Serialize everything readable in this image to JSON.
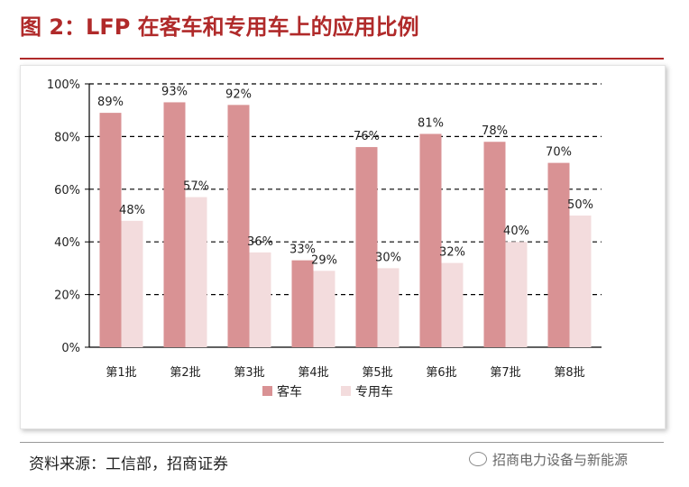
{
  "title": "图 2：LFP 在客车和专用车上的应用比例",
  "source": "资料来源：工信部，招商证券",
  "watermark": "招商电力设备与新能源",
  "colors": {
    "bus": "#d99294",
    "special": "#f3dcdd",
    "accent": "#b02a2a"
  },
  "chart_data": {
    "type": "bar",
    "categories": [
      "第1批",
      "第2批",
      "第3批",
      "第4批",
      "第5批",
      "第6批",
      "第7批",
      "第8批"
    ],
    "series": [
      {
        "name": "客车",
        "values": [
          89,
          93,
          92,
          33,
          76,
          81,
          78,
          70
        ],
        "labels": [
          "89%",
          "93%",
          "92%",
          "33%",
          "76%",
          "81%",
          "78%",
          "70%"
        ]
      },
      {
        "name": "专用车",
        "values": [
          48,
          57,
          36,
          29,
          30,
          32,
          40,
          50
        ],
        "labels": [
          "48%",
          "57%",
          "36%",
          "29%",
          "30%",
          "32%",
          "40%",
          "50%"
        ]
      }
    ],
    "y_ticks": [
      "0%",
      "20%",
      "40%",
      "60%",
      "80%",
      "100%"
    ],
    "ylim": [
      0,
      100
    ],
    "grid": true,
    "legend": "bottom"
  }
}
